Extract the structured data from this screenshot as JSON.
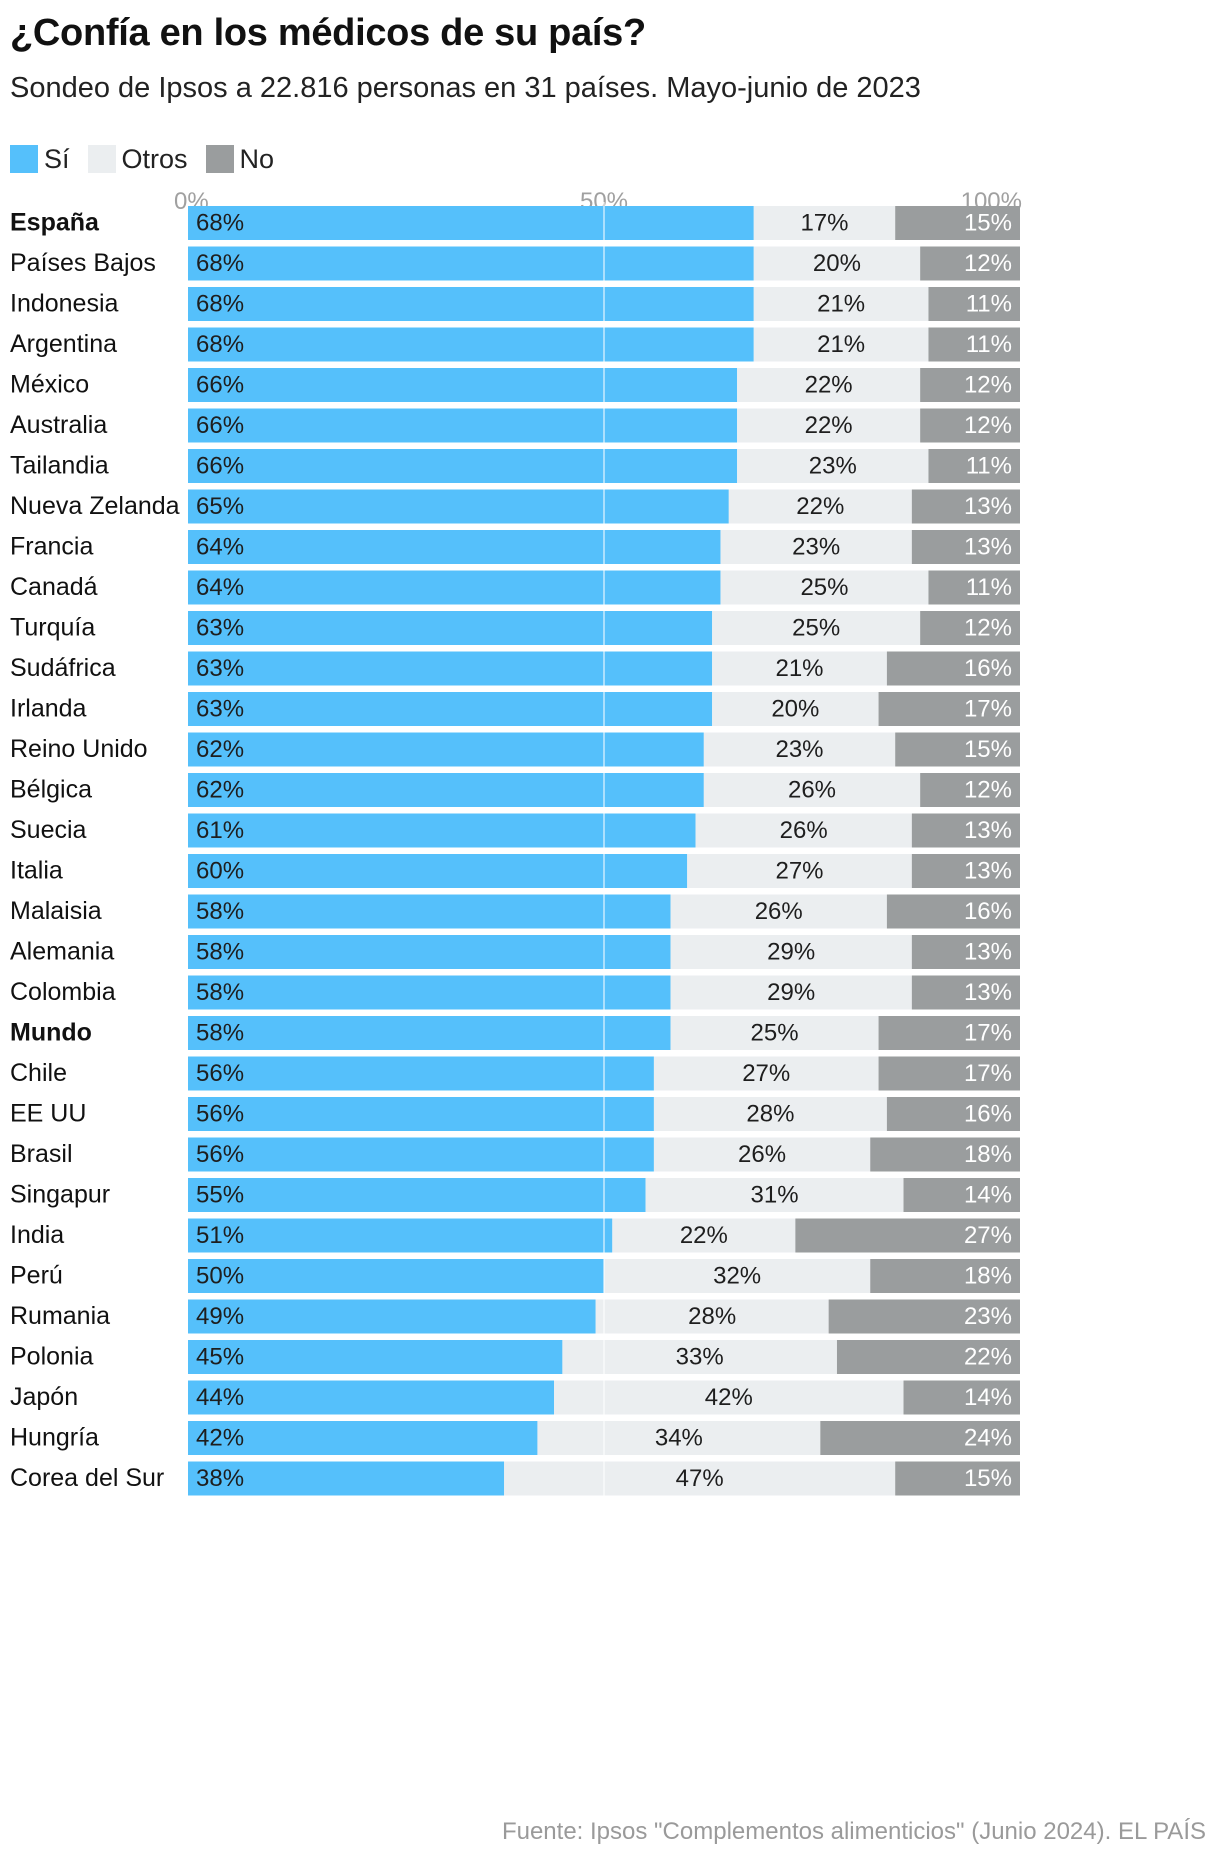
{
  "title": "¿Confía en los médicos de su país?",
  "subtitle": "Sondeo de Ipsos a 22.816 personas en 31 países. Mayo-junio de 2023",
  "source": "Fuente: Ipsos \"Complementos alimenticios\" (Junio 2024). EL PAÍS",
  "colors": {
    "si": "#55c0fb",
    "otros": "#ebeef0",
    "no": "#9a9d9e",
    "grid": "#ffffff",
    "axis_text": "#a0a0a0"
  },
  "chart_data": {
    "type": "bar",
    "orientation": "horizontal",
    "stacked": true,
    "xlim": [
      0,
      100
    ],
    "xticks": [
      "0%",
      "50%",
      "100%"
    ],
    "grid": true,
    "legend_position": "top-left",
    "categories": [
      "España",
      "Países Bajos",
      "Indonesia",
      "Argentina",
      "México",
      "Australia",
      "Tailandia",
      "Nueva Zelanda",
      "Francia",
      "Canadá",
      "Turquía",
      "Sudáfrica",
      "Irlanda",
      "Reino Unido",
      "Bélgica",
      "Suecia",
      "Italia",
      "Malaisia",
      "Alemania",
      "Colombia",
      "Mundo",
      "Chile",
      "EE UU",
      "Brasil",
      "Singapur",
      "India",
      "Perú",
      "Rumania",
      "Polonia",
      "Japón",
      "Hungría",
      "Corea del Sur"
    ],
    "highlighted": [
      "España",
      "Mundo"
    ],
    "series": [
      {
        "name": "Sí",
        "color": "#55c0fb",
        "values": [
          68,
          68,
          68,
          68,
          66,
          66,
          66,
          65,
          64,
          64,
          63,
          63,
          63,
          62,
          62,
          61,
          60,
          58,
          58,
          58,
          58,
          56,
          56,
          56,
          55,
          51,
          50,
          49,
          45,
          44,
          42,
          38
        ]
      },
      {
        "name": "Otros",
        "color": "#ebeef0",
        "values": [
          17,
          20,
          21,
          21,
          22,
          22,
          23,
          22,
          23,
          25,
          25,
          21,
          20,
          23,
          26,
          26,
          27,
          26,
          29,
          29,
          25,
          27,
          28,
          26,
          31,
          22,
          32,
          28,
          33,
          42,
          34,
          47
        ]
      },
      {
        "name": "No",
        "color": "#9a9d9e",
        "values": [
          15,
          12,
          11,
          11,
          12,
          12,
          11,
          13,
          13,
          11,
          12,
          16,
          17,
          15,
          12,
          13,
          13,
          16,
          13,
          13,
          17,
          17,
          16,
          18,
          14,
          27,
          18,
          23,
          22,
          14,
          24,
          15
        ]
      }
    ]
  }
}
